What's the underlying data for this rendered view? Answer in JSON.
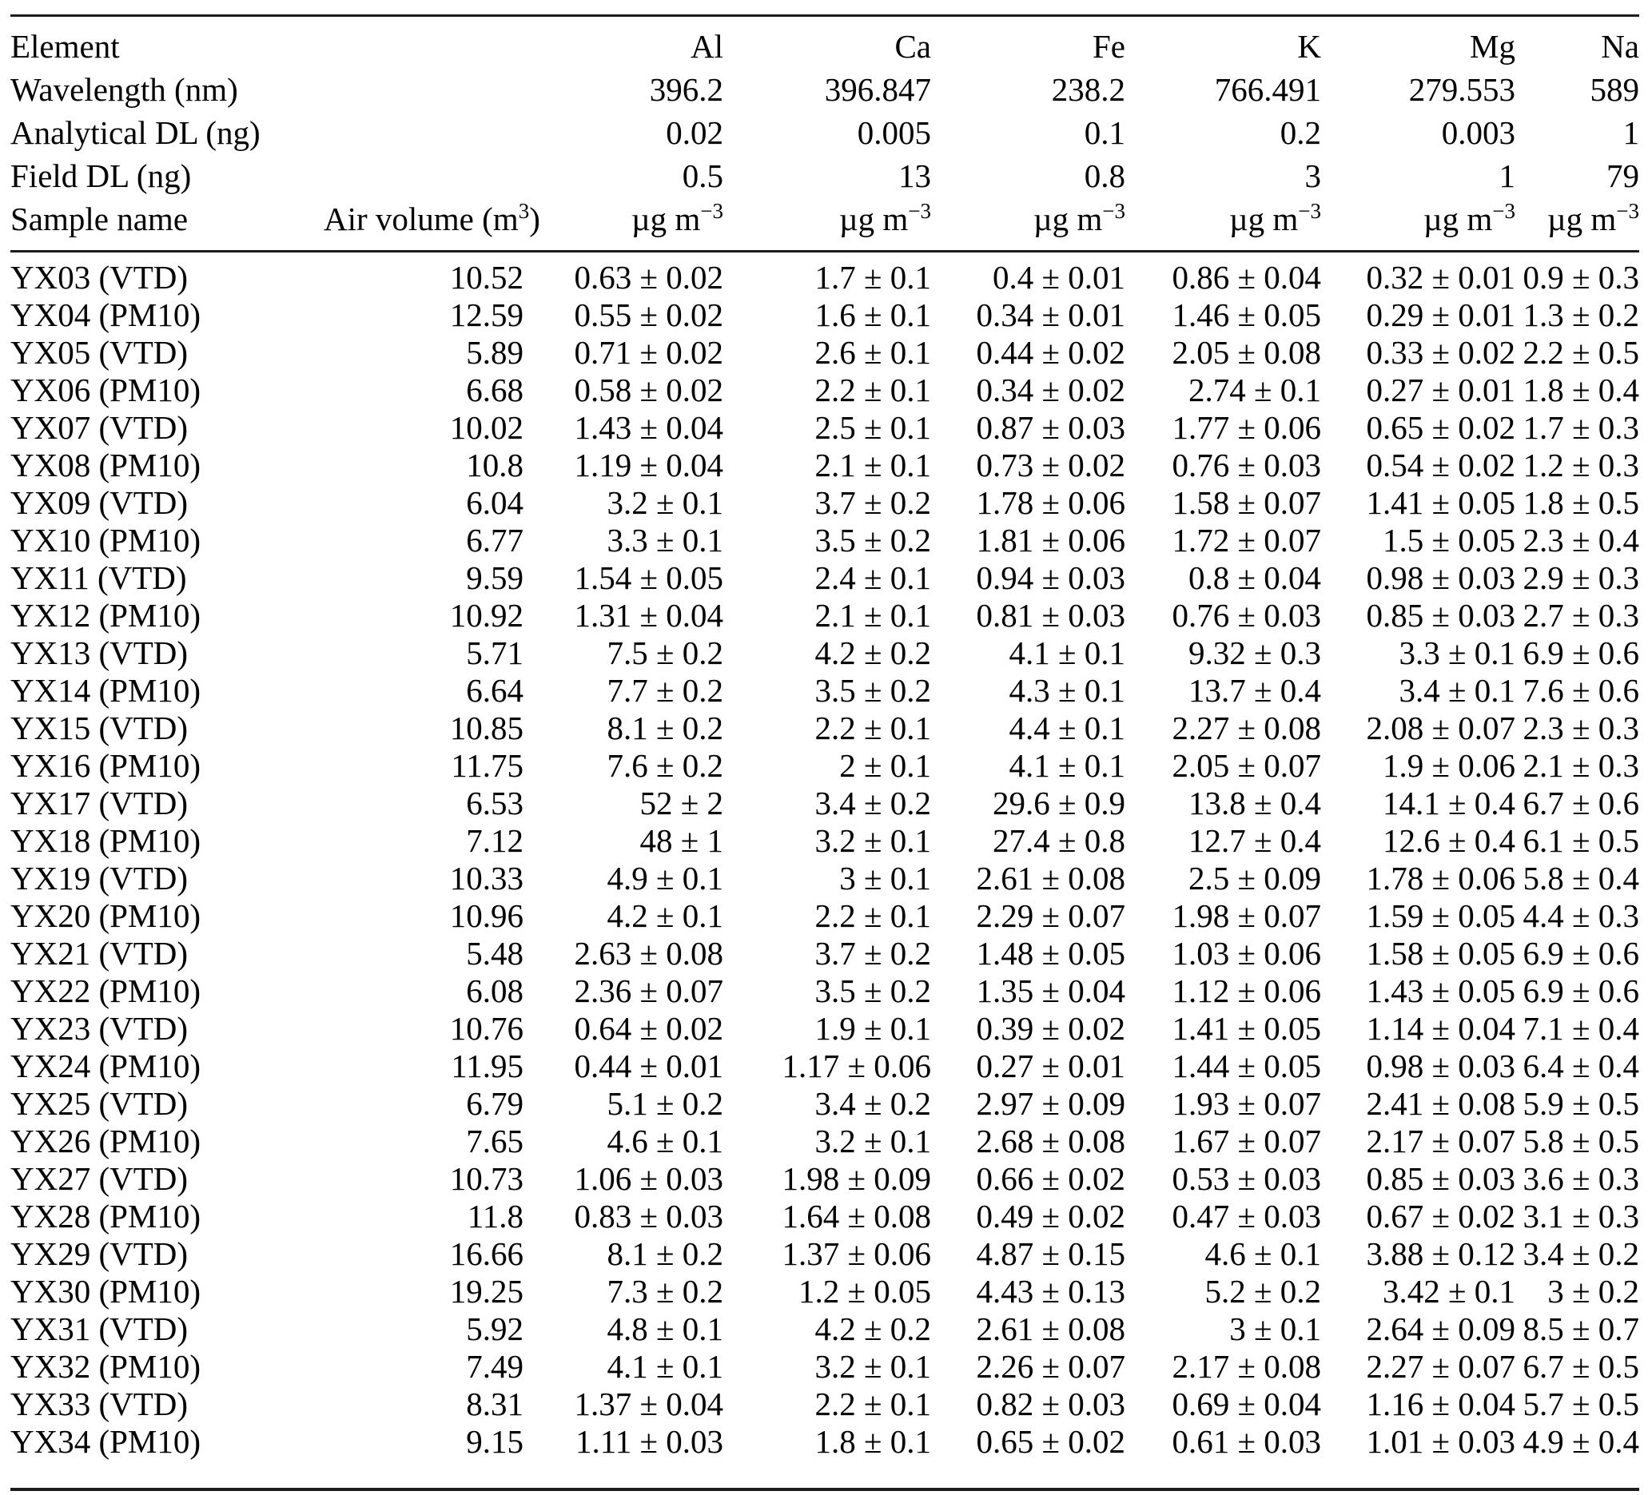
{
  "table": {
    "meta_rows": [
      {
        "label": "Element",
        "values": [
          "Al",
          "Ca",
          "Fe",
          "K",
          "Mg",
          "Na"
        ]
      },
      {
        "label": "Wavelength (nm)",
        "values": [
          "396.2",
          "396.847",
          "238.2",
          "766.491",
          "279.553",
          "589"
        ]
      },
      {
        "label": "Analytical DL (ng)",
        "values": [
          "0.02",
          "0.005",
          "0.1",
          "0.2",
          "0.003",
          "1"
        ]
      },
      {
        "label": "Field DL (ng)",
        "values": [
          "0.5",
          "13",
          "0.8",
          "3",
          "1",
          "79"
        ]
      }
    ],
    "columns_row": {
      "sample_label": "Sample name",
      "air_volume": {
        "pre": "Air volume (m",
        "sup": "3",
        "post": ")"
      },
      "unit": {
        "base": "µg m",
        "sup": "−3"
      }
    },
    "rows": [
      {
        "sample": "YX03 (VTD)",
        "air_volume": "10.52",
        "values": [
          "0.63 ± 0.02",
          "1.7 ± 0.1",
          "0.4 ± 0.01",
          "0.86 ± 0.04",
          "0.32 ± 0.01",
          "0.9 ± 0.3"
        ]
      },
      {
        "sample": "YX04 (PM10)",
        "air_volume": "12.59",
        "values": [
          "0.55 ± 0.02",
          "1.6 ± 0.1",
          "0.34 ± 0.01",
          "1.46 ± 0.05",
          "0.29 ± 0.01",
          "1.3 ± 0.2"
        ]
      },
      {
        "sample": "YX05 (VTD)",
        "air_volume": "5.89",
        "values": [
          "0.71 ± 0.02",
          "2.6 ± 0.1",
          "0.44 ± 0.02",
          "2.05 ± 0.08",
          "0.33 ± 0.02",
          "2.2 ± 0.5"
        ]
      },
      {
        "sample": "YX06 (PM10)",
        "air_volume": "6.68",
        "values": [
          "0.58 ± 0.02",
          "2.2 ± 0.1",
          "0.34 ± 0.02",
          "2.74 ± 0.1",
          "0.27 ± 0.01",
          "1.8 ± 0.4"
        ]
      },
      {
        "sample": "YX07 (VTD)",
        "air_volume": "10.02",
        "values": [
          "1.43 ± 0.04",
          "2.5 ± 0.1",
          "0.87 ± 0.03",
          "1.77 ± 0.06",
          "0.65 ± 0.02",
          "1.7 ± 0.3"
        ]
      },
      {
        "sample": "YX08 (PM10)",
        "air_volume": "10.8",
        "values": [
          "1.19 ± 0.04",
          "2.1 ± 0.1",
          "0.73 ± 0.02",
          "0.76 ± 0.03",
          "0.54 ± 0.02",
          "1.2 ± 0.3"
        ]
      },
      {
        "sample": "YX09 (VTD)",
        "air_volume": "6.04",
        "values": [
          "3.2 ± 0.1",
          "3.7 ± 0.2",
          "1.78 ± 0.06",
          "1.58 ± 0.07",
          "1.41 ± 0.05",
          "1.8 ± 0.5"
        ]
      },
      {
        "sample": "YX10 (PM10)",
        "air_volume": "6.77",
        "values": [
          "3.3 ± 0.1",
          "3.5 ± 0.2",
          "1.81 ± 0.06",
          "1.72 ± 0.07",
          "1.5 ± 0.05",
          "2.3 ± 0.4"
        ]
      },
      {
        "sample": "YX11 (VTD)",
        "air_volume": "9.59",
        "values": [
          "1.54 ± 0.05",
          "2.4 ± 0.1",
          "0.94 ± 0.03",
          "0.8 ± 0.04",
          "0.98 ± 0.03",
          "2.9 ± 0.3"
        ]
      },
      {
        "sample": "YX12 (PM10)",
        "air_volume": "10.92",
        "values": [
          "1.31 ± 0.04",
          "2.1 ± 0.1",
          "0.81 ± 0.03",
          "0.76 ± 0.03",
          "0.85 ± 0.03",
          "2.7 ± 0.3"
        ]
      },
      {
        "sample": "YX13 (VTD)",
        "air_volume": "5.71",
        "values": [
          "7.5 ± 0.2",
          "4.2 ± 0.2",
          "4.1 ± 0.1",
          "9.32 ± 0.3",
          "3.3 ± 0.1",
          "6.9 ± 0.6"
        ]
      },
      {
        "sample": "YX14 (PM10)",
        "air_volume": "6.64",
        "values": [
          "7.7 ± 0.2",
          "3.5 ± 0.2",
          "4.3 ± 0.1",
          "13.7 ± 0.4",
          "3.4 ± 0.1",
          "7.6 ± 0.6"
        ]
      },
      {
        "sample": "YX15 (VTD)",
        "air_volume": "10.85",
        "values": [
          "8.1 ± 0.2",
          "2.2 ± 0.1",
          "4.4 ± 0.1",
          "2.27 ± 0.08",
          "2.08 ± 0.07",
          "2.3 ± 0.3"
        ]
      },
      {
        "sample": "YX16 (PM10)",
        "air_volume": "11.75",
        "values": [
          "7.6 ± 0.2",
          "2 ± 0.1",
          "4.1 ± 0.1",
          "2.05 ± 0.07",
          "1.9 ± 0.06",
          "2.1 ± 0.3"
        ]
      },
      {
        "sample": "YX17 (VTD)",
        "air_volume": "6.53",
        "values": [
          "52 ± 2",
          "3.4 ± 0.2",
          "29.6 ± 0.9",
          "13.8 ± 0.4",
          "14.1 ± 0.4",
          "6.7 ± 0.6"
        ]
      },
      {
        "sample": "YX18 (PM10)",
        "air_volume": "7.12",
        "values": [
          "48 ± 1",
          "3.2 ± 0.1",
          "27.4 ± 0.8",
          "12.7 ± 0.4",
          "12.6 ± 0.4",
          "6.1 ± 0.5"
        ]
      },
      {
        "sample": "YX19 (VTD)",
        "air_volume": "10.33",
        "values": [
          "4.9 ± 0.1",
          "3 ± 0.1",
          "2.61 ± 0.08",
          "2.5 ± 0.09",
          "1.78 ± 0.06",
          "5.8 ± 0.4"
        ]
      },
      {
        "sample": "YX20 (PM10)",
        "air_volume": "10.96",
        "values": [
          "4.2 ± 0.1",
          "2.2 ± 0.1",
          "2.29 ± 0.07",
          "1.98 ± 0.07",
          "1.59 ± 0.05",
          "4.4 ± 0.3"
        ]
      },
      {
        "sample": "YX21 (VTD)",
        "air_volume": "5.48",
        "values": [
          "2.63 ± 0.08",
          "3.7 ± 0.2",
          "1.48 ± 0.05",
          "1.03 ± 0.06",
          "1.58 ± 0.05",
          "6.9 ± 0.6"
        ]
      },
      {
        "sample": "YX22 (PM10)",
        "air_volume": "6.08",
        "values": [
          "2.36 ± 0.07",
          "3.5 ± 0.2",
          "1.35 ± 0.04",
          "1.12 ± 0.06",
          "1.43 ± 0.05",
          "6.9 ± 0.6"
        ]
      },
      {
        "sample": "YX23 (VTD)",
        "air_volume": "10.76",
        "values": [
          "0.64 ± 0.02",
          "1.9 ± 0.1",
          "0.39 ± 0.02",
          "1.41 ± 0.05",
          "1.14 ± 0.04",
          "7.1 ± 0.4"
        ]
      },
      {
        "sample": "YX24 (PM10)",
        "air_volume": "11.95",
        "values": [
          "0.44 ± 0.01",
          "1.17 ± 0.06",
          "0.27 ± 0.01",
          "1.44 ± 0.05",
          "0.98 ± 0.03",
          "6.4 ± 0.4"
        ]
      },
      {
        "sample": "YX25 (VTD)",
        "air_volume": "6.79",
        "values": [
          "5.1 ± 0.2",
          "3.4 ± 0.2",
          "2.97 ± 0.09",
          "1.93 ± 0.07",
          "2.41 ± 0.08",
          "5.9 ± 0.5"
        ]
      },
      {
        "sample": "YX26 (PM10)",
        "air_volume": "7.65",
        "values": [
          "4.6 ± 0.1",
          "3.2 ± 0.1",
          "2.68 ± 0.08",
          "1.67 ± 0.07",
          "2.17 ± 0.07",
          "5.8 ± 0.5"
        ]
      },
      {
        "sample": "YX27 (VTD)",
        "air_volume": "10.73",
        "values": [
          "1.06 ± 0.03",
          "1.98 ± 0.09",
          "0.66 ± 0.02",
          "0.53 ± 0.03",
          "0.85 ± 0.03",
          "3.6 ± 0.3"
        ]
      },
      {
        "sample": "YX28 (PM10)",
        "air_volume": "11.8",
        "values": [
          "0.83 ± 0.03",
          "1.64 ± 0.08",
          "0.49 ± 0.02",
          "0.47 ± 0.03",
          "0.67 ± 0.02",
          "3.1 ± 0.3"
        ]
      },
      {
        "sample": "YX29 (VTD)",
        "air_volume": "16.66",
        "values": [
          "8.1 ± 0.2",
          "1.37 ± 0.06",
          "4.87 ± 0.15",
          "4.6 ± 0.1",
          "3.88 ± 0.12",
          "3.4 ± 0.2"
        ]
      },
      {
        "sample": "YX30 (PM10)",
        "air_volume": "19.25",
        "values": [
          "7.3 ± 0.2",
          "1.2 ± 0.05",
          "4.43 ± 0.13",
          "5.2 ± 0.2",
          "3.42 ± 0.1",
          "3 ± 0.2"
        ]
      },
      {
        "sample": "YX31 (VTD)",
        "air_volume": "5.92",
        "values": [
          "4.8 ± 0.1",
          "4.2 ± 0.2",
          "2.61 ± 0.08",
          "3 ± 0.1",
          "2.64 ± 0.09",
          "8.5 ± 0.7"
        ]
      },
      {
        "sample": "YX32 (PM10)",
        "air_volume": "7.49",
        "values": [
          "4.1 ± 0.1",
          "3.2 ± 0.1",
          "2.26 ± 0.07",
          "2.17 ± 0.08",
          "2.27 ± 0.07",
          "6.7 ± 0.5"
        ]
      },
      {
        "sample": "YX33 (VTD)",
        "air_volume": "8.31",
        "values": [
          "1.37 ± 0.04",
          "2.2 ± 0.1",
          "0.82 ± 0.03",
          "0.69 ± 0.04",
          "1.16 ± 0.04",
          "5.7 ± 0.5"
        ]
      },
      {
        "sample": "YX34 (PM10)",
        "air_volume": "9.15",
        "values": [
          "1.11 ± 0.03",
          "1.8 ± 0.1",
          "0.65 ± 0.02",
          "0.61 ± 0.03",
          "1.01 ± 0.03",
          "4.9 ± 0.4"
        ]
      }
    ]
  }
}
